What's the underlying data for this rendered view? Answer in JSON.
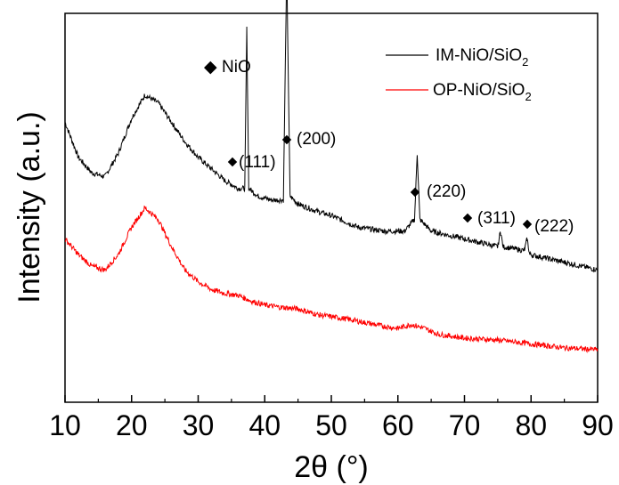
{
  "chart_data": {
    "type": "line",
    "title": "",
    "xlabel": "2θ (°)",
    "ylabel": "Intensity (a.u.)",
    "xlim": [
      10,
      90
    ],
    "x_ticks": [
      "10",
      "20",
      "30",
      "40",
      "50",
      "60",
      "70",
      "80",
      "90"
    ],
    "y_ticks": [],
    "grid": false,
    "legend_position": "top-right",
    "marker_legend": {
      "symbol": "◆",
      "label": "NiO"
    },
    "series": [
      {
        "name": "IM-NiO/SiO2",
        "name_main": "IM-NiO/SiO",
        "name_sub": "2",
        "color": "#000000",
        "peaks": [
          37.3,
          43.3,
          62.9,
          75.4,
          79.4
        ],
        "points": [
          [
            10,
            0.72
          ],
          [
            12,
            0.63
          ],
          [
            14,
            0.59
          ],
          [
            16,
            0.58
          ],
          [
            18,
            0.64
          ],
          [
            20,
            0.73
          ],
          [
            22,
            0.79
          ],
          [
            24,
            0.77
          ],
          [
            26,
            0.72
          ],
          [
            28,
            0.67
          ],
          [
            30,
            0.63
          ],
          [
            32,
            0.6
          ],
          [
            34,
            0.57
          ],
          [
            36,
            0.55
          ],
          [
            37,
            0.55
          ],
          [
            37.3,
            0.96
          ],
          [
            37.6,
            0.55
          ],
          [
            39,
            0.53
          ],
          [
            41,
            0.52
          ],
          [
            42.8,
            0.52
          ],
          [
            43.3,
            1.12
          ],
          [
            43.8,
            0.53
          ],
          [
            45,
            0.51
          ],
          [
            48,
            0.49
          ],
          [
            50,
            0.48
          ],
          [
            54,
            0.45
          ],
          [
            58,
            0.44
          ],
          [
            61,
            0.44
          ],
          [
            62.5,
            0.47
          ],
          [
            62.9,
            0.64
          ],
          [
            63.3,
            0.47
          ],
          [
            65,
            0.44
          ],
          [
            70,
            0.42
          ],
          [
            75,
            0.4
          ],
          [
            75.4,
            0.44
          ],
          [
            75.8,
            0.4
          ],
          [
            79,
            0.39
          ],
          [
            79.4,
            0.42
          ],
          [
            79.8,
            0.38
          ],
          [
            85,
            0.36
          ],
          [
            90,
            0.34
          ]
        ]
      },
      {
        "name": "OP-NiO/SiO2",
        "name_main": "OP-NiO/SiO",
        "name_sub": "2",
        "color": "#ff0000",
        "points": [
          [
            10,
            0.42
          ],
          [
            12,
            0.38
          ],
          [
            14,
            0.35
          ],
          [
            16,
            0.34
          ],
          [
            18,
            0.38
          ],
          [
            20,
            0.45
          ],
          [
            22,
            0.5
          ],
          [
            24,
            0.47
          ],
          [
            26,
            0.4
          ],
          [
            28,
            0.34
          ],
          [
            30,
            0.31
          ],
          [
            32,
            0.29
          ],
          [
            34,
            0.28
          ],
          [
            36,
            0.275
          ],
          [
            38,
            0.26
          ],
          [
            40,
            0.25
          ],
          [
            42,
            0.245
          ],
          [
            45,
            0.24
          ],
          [
            48,
            0.225
          ],
          [
            52,
            0.215
          ],
          [
            55,
            0.205
          ],
          [
            58,
            0.195
          ],
          [
            60,
            0.19
          ],
          [
            62,
            0.2
          ],
          [
            64,
            0.19
          ],
          [
            66,
            0.175
          ],
          [
            70,
            0.165
          ],
          [
            75,
            0.16
          ],
          [
            80,
            0.15
          ],
          [
            85,
            0.14
          ],
          [
            90,
            0.135
          ]
        ]
      }
    ],
    "annotations": [
      {
        "label": "(111)",
        "x": 37.3
      },
      {
        "label": "(200)",
        "x": 43.3
      },
      {
        "label": "(220)",
        "x": 62.9
      },
      {
        "label": "(311)",
        "x": 75.4
      },
      {
        "label": "(222)",
        "x": 79.4
      }
    ]
  }
}
